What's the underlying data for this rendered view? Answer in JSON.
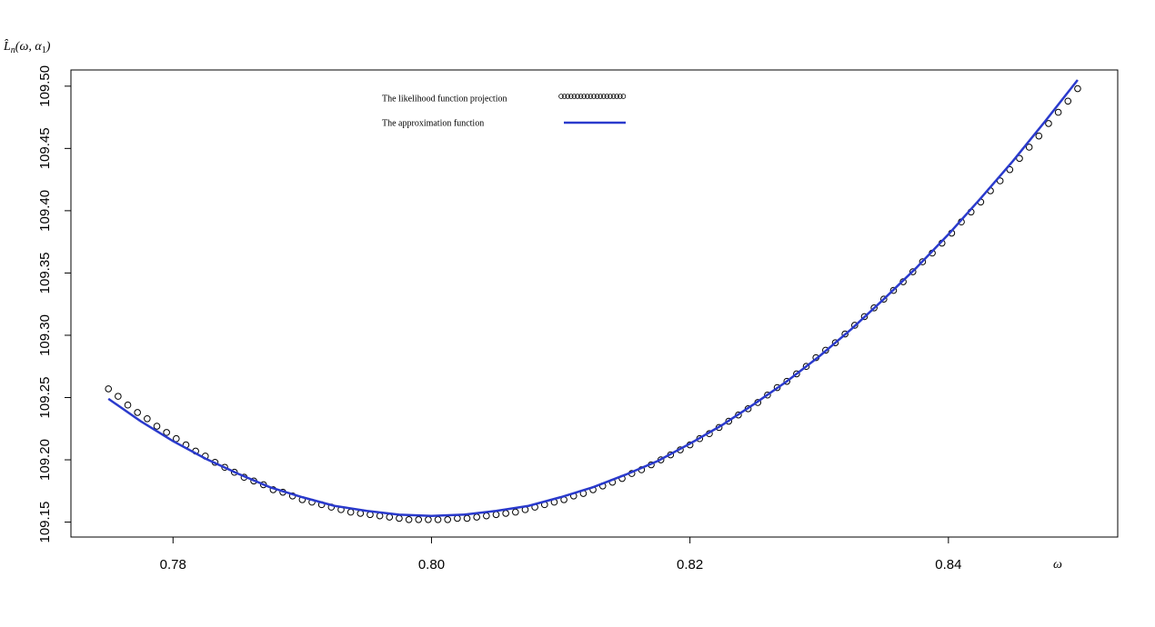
{
  "chart_data": {
    "type": "scatter_line",
    "xlabel": "ω",
    "ylabel": [
      "L̂",
      "n",
      "(ω, α",
      "1",
      ")"
    ],
    "xlim": [
      0.7721,
      0.8531
    ],
    "ylim": [
      109.138,
      109.513
    ],
    "xticks": [
      0.78,
      {
        "value": 0.8,
        "label": "0.80"
      },
      0.82,
      0.84
    ],
    "yticks": [
      109.15,
      {
        "value": 109.2,
        "label": "109.20"
      },
      109.25,
      {
        "value": 109.3,
        "label": "109.30"
      },
      109.35,
      {
        "value": 109.4,
        "label": "109.40"
      },
      109.45,
      {
        "value": 109.5,
        "label": "109.50"
      }
    ],
    "grid": false,
    "series": [
      {
        "name": "The likelihood function  projection",
        "kind": "points",
        "color": "#000000",
        "x": [
          0.775,
          0.77575,
          0.7765,
          0.77725,
          0.778,
          0.77875,
          0.7795,
          0.78025,
          0.781,
          0.78175,
          0.7825,
          0.78325,
          0.784,
          0.78475,
          0.7855,
          0.78625,
          0.787,
          0.78775,
          0.7885,
          0.78925,
          0.79,
          0.79075,
          0.7915,
          0.79225,
          0.793,
          0.79375,
          0.7945,
          0.79525,
          0.796,
          0.79675,
          0.7975,
          0.79825,
          0.799,
          0.79975,
          0.8005,
          0.80125,
          0.802,
          0.80275,
          0.8035,
          0.80425,
          0.805,
          0.80575,
          0.8065,
          0.80725,
          0.808,
          0.80875,
          0.8095,
          0.81025,
          0.811,
          0.81175,
          0.8125,
          0.81325,
          0.814,
          0.81475,
          0.8155,
          0.81625,
          0.817,
          0.81775,
          0.8185,
          0.81925,
          0.82,
          0.82075,
          0.8215,
          0.82225,
          0.823,
          0.82375,
          0.8245,
          0.82525,
          0.826,
          0.82675,
          0.8275,
          0.82825,
          0.829,
          0.82975,
          0.8305,
          0.83125,
          0.832,
          0.83275,
          0.8335,
          0.83425,
          0.835,
          0.83575,
          0.8365,
          0.83725,
          0.838,
          0.83875,
          0.8395,
          0.84025,
          0.841,
          0.84175,
          0.8425,
          0.84325,
          0.844,
          0.84475,
          0.8455,
          0.84625,
          0.847,
          0.84775,
          0.8485,
          0.84925,
          0.85
        ],
        "values": [
          109.257,
          109.251,
          109.244,
          109.238,
          109.233,
          109.227,
          109.222,
          109.217,
          109.212,
          109.207,
          109.203,
          109.198,
          109.194,
          109.19,
          109.186,
          109.183,
          109.18,
          109.176,
          109.174,
          109.171,
          109.168,
          109.166,
          109.164,
          109.162,
          109.16,
          109.158,
          109.157,
          109.156,
          109.155,
          109.154,
          109.153,
          109.152,
          109.152,
          109.152,
          109.152,
          109.152,
          109.153,
          109.153,
          109.154,
          109.155,
          109.156,
          109.157,
          109.158,
          109.16,
          109.162,
          109.164,
          109.166,
          109.168,
          109.171,
          109.173,
          109.176,
          109.179,
          109.182,
          109.185,
          109.189,
          109.192,
          109.196,
          109.2,
          109.204,
          109.208,
          109.212,
          109.217,
          109.221,
          109.226,
          109.231,
          109.236,
          109.241,
          109.246,
          109.252,
          109.258,
          109.263,
          109.269,
          109.275,
          109.282,
          109.288,
          109.294,
          109.301,
          109.308,
          109.315,
          109.322,
          109.329,
          109.336,
          109.343,
          109.351,
          109.359,
          109.366,
          109.374,
          109.382,
          109.391,
          109.399,
          109.407,
          109.416,
          109.424,
          109.433,
          109.442,
          109.451,
          109.46,
          109.47,
          109.479,
          109.488,
          109.498
        ]
      },
      {
        "name": "The approximation function",
        "kind": "line",
        "color": "#2a3acc",
        "x": [
          0.775,
          0.7775,
          0.78,
          0.7825,
          0.785,
          0.7875,
          0.79,
          0.7925,
          0.795,
          0.7975,
          0.8,
          0.8025,
          0.805,
          0.8075,
          0.81,
          0.8125,
          0.815,
          0.8175,
          0.82,
          0.8225,
          0.825,
          0.8275,
          0.83,
          0.8325,
          0.835,
          0.8375,
          0.84,
          0.8425,
          0.845,
          0.8475,
          0.85
        ],
        "values": [
          109.249,
          109.231,
          109.215,
          109.201,
          109.189,
          109.178,
          109.17,
          109.163,
          109.159,
          109.156,
          109.155,
          109.156,
          109.159,
          109.163,
          109.17,
          109.178,
          109.188,
          109.199,
          109.213,
          109.228,
          109.245,
          109.263,
          109.283,
          109.305,
          109.329,
          109.354,
          109.381,
          109.41,
          109.44,
          109.472,
          109.505
        ]
      }
    ]
  }
}
